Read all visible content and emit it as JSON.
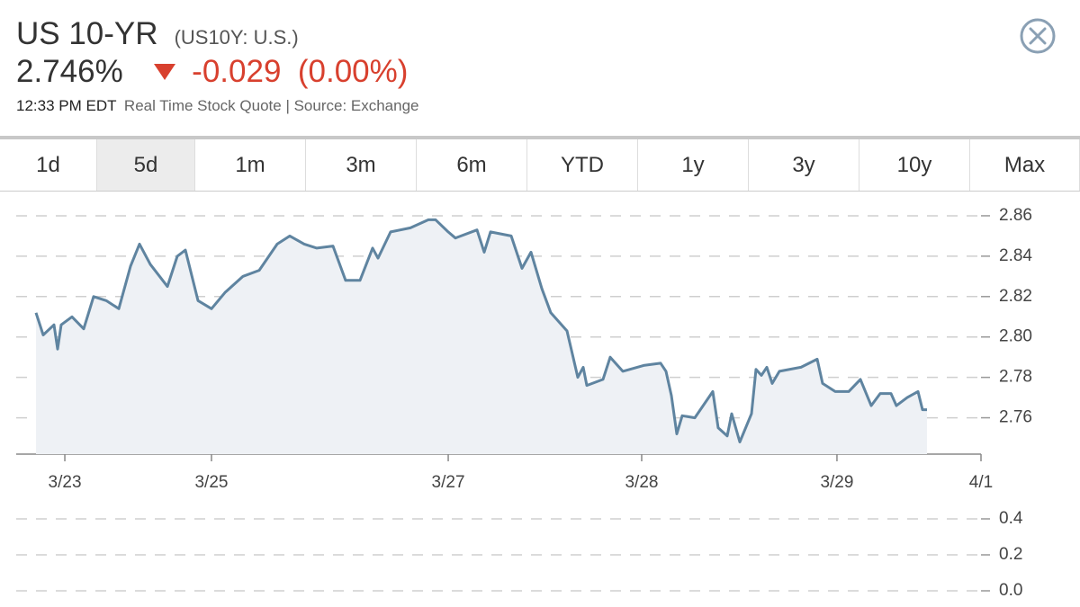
{
  "header": {
    "title": "US 10-YR",
    "symbol": "(US10Y: U.S.)"
  },
  "quote": {
    "price": "2.746%",
    "change": "-0.029",
    "change_percent": "(0.00%)",
    "time": "12:33 PM EDT",
    "source": "Real Time Stock Quote | Source: Exchange"
  },
  "tabs": [
    {
      "label": "1d"
    },
    {
      "label": "5d",
      "selected": true
    },
    {
      "label": "1m"
    },
    {
      "label": "3m"
    },
    {
      "label": "6m"
    },
    {
      "label": "YTD"
    },
    {
      "label": "1y"
    },
    {
      "label": "3y"
    },
    {
      "label": "10y"
    },
    {
      "label": "Max"
    }
  ],
  "chart_data": [
    {
      "type": "line",
      "color": "#5f84a0",
      "fill": "#eef1f5",
      "grid": true,
      "x": [
        2.05,
        2.8,
        3.92,
        4.29,
        4.66,
        5.78,
        7.0,
        8.02,
        9.33,
        10.63,
        11.85,
        12.78,
        13.9,
        15.67,
        16.7,
        17.54,
        18.84,
        20.24,
        21.64,
        23.51,
        25.19,
        27.05,
        28.36,
        29.85,
        31.16,
        32.84,
        34.14,
        35.63,
        36.94,
        37.5,
        38.81,
        40.86,
        42.72,
        43.47,
        44.78,
        45.52,
        47.76,
        48.51,
        49.16,
        51.31,
        52.43,
        53.36,
        54.48,
        55.41,
        57.09,
        58.21,
        58.77,
        59.14,
        60.82,
        61.57,
        62.87,
        65.11,
        66.79,
        67.35,
        67.91,
        68.47,
        69.03,
        70.34,
        72.2,
        72.76,
        73.69,
        74.16,
        75.0,
        76.21,
        76.68,
        77.24,
        77.8,
        78.36,
        79.1,
        81.34,
        83.02,
        83.58,
        84.89,
        86.29,
        87.5,
        88.62,
        89.55,
        90.67,
        91.23,
        92.35,
        93.47,
        93.94,
        94.4
      ],
      "values": [
        2.812,
        2.801,
        2.806,
        2.794,
        2.806,
        2.81,
        2.804,
        2.82,
        2.818,
        2.814,
        2.835,
        2.846,
        2.836,
        2.825,
        2.84,
        2.843,
        2.818,
        2.814,
        2.822,
        2.83,
        2.833,
        2.846,
        2.85,
        2.846,
        2.844,
        2.845,
        2.828,
        2.828,
        2.844,
        2.839,
        2.852,
        2.854,
        2.858,
        2.858,
        2.852,
        2.849,
        2.853,
        2.842,
        2.852,
        2.85,
        2.834,
        2.842,
        2.824,
        2.812,
        2.803,
        2.78,
        2.785,
        2.776,
        2.779,
        2.79,
        2.783,
        2.786,
        2.787,
        2.783,
        2.771,
        2.752,
        2.761,
        2.76,
        2.773,
        2.755,
        2.751,
        2.762,
        2.748,
        2.762,
        2.784,
        2.781,
        2.785,
        2.777,
        2.783,
        2.785,
        2.789,
        2.777,
        2.773,
        2.773,
        2.779,
        2.766,
        2.772,
        2.772,
        2.766,
        2.77,
        2.773,
        2.764,
        2.764
      ],
      "xlim": [
        0,
        100
      ],
      "xticks": [
        {
          "value": 5.04,
          "label": "3/23"
        },
        {
          "value": 20.24,
          "label": "3/25"
        },
        {
          "value": 44.78,
          "label": "3/27"
        },
        {
          "value": 64.83,
          "label": "3/28"
        },
        {
          "value": 85.07,
          "label": "3/29"
        },
        {
          "value": 100,
          "label": "4/1"
        }
      ],
      "ylim": [
        2.742,
        2.872
      ],
      "yticks": [
        2.76,
        2.78,
        {
          "value": 2.8,
          "label": "2.80"
        },
        2.82,
        2.84,
        2.86
      ]
    },
    {
      "type": "bar",
      "grid": true,
      "ylim": [
        0,
        0.4
      ],
      "yticks": [
        0.4,
        0.2,
        {
          "value": 0,
          "label": "0.0"
        }
      ]
    }
  ]
}
